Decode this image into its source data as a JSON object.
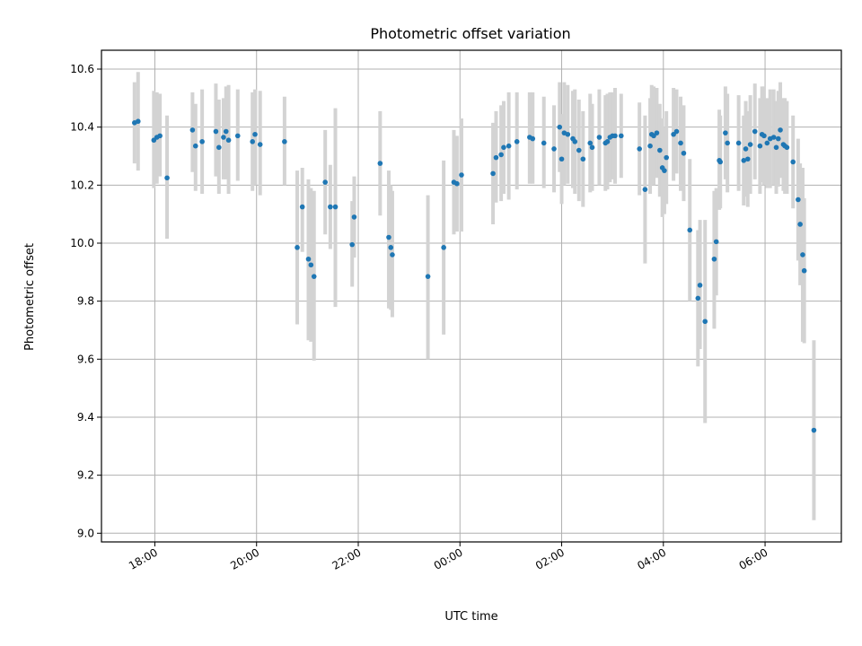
{
  "chart_data": {
    "type": "scatter",
    "title": "Photometric offset variation",
    "xlabel": "UTC time",
    "ylabel": "Photometric offset",
    "x_unit": "hours after 00:00 UTC (negative = previous evening)",
    "xlim": [
      -7.05,
      7.5
    ],
    "ylim": [
      8.97,
      10.665
    ],
    "x_ticks": [
      {
        "label": "18:00",
        "value": -6
      },
      {
        "label": "20:00",
        "value": -4
      },
      {
        "label": "22:00",
        "value": -2
      },
      {
        "label": "00:00",
        "value": 0
      },
      {
        "label": "02:00",
        "value": 2
      },
      {
        "label": "04:00",
        "value": 4
      },
      {
        "label": "06:00",
        "value": 6
      }
    ],
    "y_ticks": [
      {
        "label": "9.0",
        "value": 9.0
      },
      {
        "label": "9.2",
        "value": 9.2
      },
      {
        "label": "9.4",
        "value": 9.4
      },
      {
        "label": "9.6",
        "value": 9.6
      },
      {
        "label": "9.8",
        "value": 9.8
      },
      {
        "label": "10.0",
        "value": 10.0
      },
      {
        "label": "10.2",
        "value": 10.2
      },
      {
        "label": "10.4",
        "value": 10.4
      },
      {
        "label": "10.6",
        "value": 10.6
      }
    ],
    "grid": true,
    "colors": {
      "point": "#1f77b4",
      "errorbar": "#d3d3d3"
    },
    "points": [
      {
        "t": -6.4,
        "y": 10.415,
        "lo": 10.275,
        "hi": 10.555
      },
      {
        "t": -6.33,
        "y": 10.42,
        "lo": 10.25,
        "hi": 10.59
      },
      {
        "t": -6.02,
        "y": 10.355,
        "lo": 10.19,
        "hi": 10.525
      },
      {
        "t": -5.96,
        "y": 10.365,
        "lo": 10.205,
        "hi": 10.52
      },
      {
        "t": -5.9,
        "y": 10.37,
        "lo": 10.23,
        "hi": 10.515
      },
      {
        "t": -5.76,
        "y": 10.225,
        "lo": 10.015,
        "hi": 10.44
      },
      {
        "t": -5.26,
        "y": 10.39,
        "lo": 10.245,
        "hi": 10.52
      },
      {
        "t": -5.2,
        "y": 10.335,
        "lo": 10.18,
        "hi": 10.48
      },
      {
        "t": -5.07,
        "y": 10.35,
        "lo": 10.17,
        "hi": 10.53
      },
      {
        "t": -4.8,
        "y": 10.385,
        "lo": 10.23,
        "hi": 10.55
      },
      {
        "t": -4.74,
        "y": 10.33,
        "lo": 10.17,
        "hi": 10.495
      },
      {
        "t": -4.65,
        "y": 10.365,
        "lo": 10.22,
        "hi": 10.5
      },
      {
        "t": -4.6,
        "y": 10.385,
        "lo": 10.22,
        "hi": 10.54
      },
      {
        "t": -4.55,
        "y": 10.355,
        "lo": 10.17,
        "hi": 10.545
      },
      {
        "t": -4.37,
        "y": 10.37,
        "lo": 10.215,
        "hi": 10.53
      },
      {
        "t": -4.08,
        "y": 10.35,
        "lo": 10.18,
        "hi": 10.52
      },
      {
        "t": -4.03,
        "y": 10.375,
        "lo": 10.2,
        "hi": 10.53
      },
      {
        "t": -3.93,
        "y": 10.34,
        "lo": 10.165,
        "hi": 10.525
      },
      {
        "t": -3.45,
        "y": 10.35,
        "lo": 10.2,
        "hi": 10.505
      },
      {
        "t": -3.2,
        "y": 9.985,
        "lo": 9.72,
        "hi": 10.25
      },
      {
        "t": -3.1,
        "y": 10.125,
        "lo": 9.97,
        "hi": 10.26
      },
      {
        "t": -2.98,
        "y": 9.945,
        "lo": 9.665,
        "hi": 10.22
      },
      {
        "t": -2.93,
        "y": 9.925,
        "lo": 9.66,
        "hi": 10.19
      },
      {
        "t": -2.87,
        "y": 9.885,
        "lo": 9.595,
        "hi": 10.18
      },
      {
        "t": -2.65,
        "y": 10.21,
        "lo": 10.03,
        "hi": 10.39
      },
      {
        "t": -2.55,
        "y": 10.125,
        "lo": 9.98,
        "hi": 10.27
      },
      {
        "t": -2.45,
        "y": 10.125,
        "lo": 9.78,
        "hi": 10.465
      },
      {
        "t": -2.12,
        "y": 9.995,
        "lo": 9.85,
        "hi": 10.145
      },
      {
        "t": -2.08,
        "y": 10.09,
        "lo": 9.95,
        "hi": 10.23
      },
      {
        "t": -1.57,
        "y": 10.275,
        "lo": 10.095,
        "hi": 10.455
      },
      {
        "t": -1.4,
        "y": 10.02,
        "lo": 9.775,
        "hi": 10.25
      },
      {
        "t": -1.36,
        "y": 9.985,
        "lo": 9.77,
        "hi": 10.2
      },
      {
        "t": -1.33,
        "y": 9.96,
        "lo": 9.745,
        "hi": 10.18
      },
      {
        "t": -0.63,
        "y": 9.885,
        "lo": 9.6,
        "hi": 10.165
      },
      {
        "t": -0.32,
        "y": 9.985,
        "lo": 9.685,
        "hi": 10.285
      },
      {
        "t": -0.12,
        "y": 10.21,
        "lo": 10.03,
        "hi": 10.39
      },
      {
        "t": -0.06,
        "y": 10.205,
        "lo": 10.04,
        "hi": 10.37
      },
      {
        "t": 0.03,
        "y": 10.235,
        "lo": 10.04,
        "hi": 10.43
      },
      {
        "t": 0.65,
        "y": 10.24,
        "lo": 10.065,
        "hi": 10.415
      },
      {
        "t": 0.71,
        "y": 10.295,
        "lo": 10.14,
        "hi": 10.455
      },
      {
        "t": 0.81,
        "y": 10.305,
        "lo": 10.145,
        "hi": 10.475
      },
      {
        "t": 0.86,
        "y": 10.33,
        "lo": 10.17,
        "hi": 10.49
      },
      {
        "t": 0.96,
        "y": 10.335,
        "lo": 10.15,
        "hi": 10.52
      },
      {
        "t": 1.12,
        "y": 10.35,
        "lo": 10.185,
        "hi": 10.52
      },
      {
        "t": 1.37,
        "y": 10.365,
        "lo": 10.205,
        "hi": 10.52
      },
      {
        "t": 1.43,
        "y": 10.36,
        "lo": 10.205,
        "hi": 10.52
      },
      {
        "t": 1.65,
        "y": 10.345,
        "lo": 10.19,
        "hi": 10.505
      },
      {
        "t": 1.85,
        "y": 10.325,
        "lo": 10.175,
        "hi": 10.475
      },
      {
        "t": 1.96,
        "y": 10.4,
        "lo": 10.245,
        "hi": 10.555
      },
      {
        "t": 2.0,
        "y": 10.29,
        "lo": 10.135,
        "hi": 10.445
      },
      {
        "t": 2.05,
        "y": 10.38,
        "lo": 10.2,
        "hi": 10.555
      },
      {
        "t": 2.12,
        "y": 10.375,
        "lo": 10.205,
        "hi": 10.545
      },
      {
        "t": 2.22,
        "y": 10.36,
        "lo": 10.19,
        "hi": 10.525
      },
      {
        "t": 2.26,
        "y": 10.35,
        "lo": 10.17,
        "hi": 10.53
      },
      {
        "t": 2.34,
        "y": 10.32,
        "lo": 10.145,
        "hi": 10.495
      },
      {
        "t": 2.42,
        "y": 10.29,
        "lo": 10.125,
        "hi": 10.455
      },
      {
        "t": 2.56,
        "y": 10.345,
        "lo": 10.175,
        "hi": 10.515
      },
      {
        "t": 2.6,
        "y": 10.33,
        "lo": 10.18,
        "hi": 10.48
      },
      {
        "t": 2.74,
        "y": 10.365,
        "lo": 10.2,
        "hi": 10.53
      },
      {
        "t": 2.86,
        "y": 10.345,
        "lo": 10.18,
        "hi": 10.51
      },
      {
        "t": 2.9,
        "y": 10.35,
        "lo": 10.185,
        "hi": 10.515
      },
      {
        "t": 2.95,
        "y": 10.365,
        "lo": 10.21,
        "hi": 10.52
      },
      {
        "t": 3.0,
        "y": 10.37,
        "lo": 10.22,
        "hi": 10.52
      },
      {
        "t": 3.05,
        "y": 10.37,
        "lo": 10.205,
        "hi": 10.535
      },
      {
        "t": 3.17,
        "y": 10.37,
        "lo": 10.225,
        "hi": 10.515
      },
      {
        "t": 3.53,
        "y": 10.325,
        "lo": 10.165,
        "hi": 10.485
      },
      {
        "t": 3.64,
        "y": 10.185,
        "lo": 9.93,
        "hi": 10.44
      },
      {
        "t": 3.74,
        "y": 10.335,
        "lo": 10.17,
        "hi": 10.5
      },
      {
        "t": 3.77,
        "y": 10.375,
        "lo": 10.205,
        "hi": 10.545
      },
      {
        "t": 3.81,
        "y": 10.37,
        "lo": 10.2,
        "hi": 10.54
      },
      {
        "t": 3.87,
        "y": 10.38,
        "lo": 10.225,
        "hi": 10.535
      },
      {
        "t": 3.93,
        "y": 10.32,
        "lo": 10.16,
        "hi": 10.48
      },
      {
        "t": 3.98,
        "y": 10.26,
        "lo": 10.09,
        "hi": 10.43
      },
      {
        "t": 4.02,
        "y": 10.25,
        "lo": 10.1,
        "hi": 10.4
      },
      {
        "t": 4.06,
        "y": 10.295,
        "lo": 10.135,
        "hi": 10.455
      },
      {
        "t": 4.2,
        "y": 10.375,
        "lo": 10.215,
        "hi": 10.535
      },
      {
        "t": 4.26,
        "y": 10.385,
        "lo": 10.24,
        "hi": 10.53
      },
      {
        "t": 4.34,
        "y": 10.345,
        "lo": 10.18,
        "hi": 10.505
      },
      {
        "t": 4.4,
        "y": 10.31,
        "lo": 10.145,
        "hi": 10.475
      },
      {
        "t": 4.52,
        "y": 10.045,
        "lo": 9.8,
        "hi": 10.29
      },
      {
        "t": 4.68,
        "y": 9.81,
        "lo": 9.575,
        "hi": 10.045
      },
      {
        "t": 4.72,
        "y": 9.855,
        "lo": 9.635,
        "hi": 10.08
      },
      {
        "t": 4.82,
        "y": 9.73,
        "lo": 9.38,
        "hi": 10.08
      },
      {
        "t": 5.0,
        "y": 9.945,
        "lo": 9.705,
        "hi": 10.18
      },
      {
        "t": 5.04,
        "y": 10.005,
        "lo": 9.82,
        "hi": 10.19
      },
      {
        "t": 5.1,
        "y": 10.285,
        "lo": 10.115,
        "hi": 10.46
      },
      {
        "t": 5.12,
        "y": 10.28,
        "lo": 10.12,
        "hi": 10.44
      },
      {
        "t": 5.22,
        "y": 10.38,
        "lo": 10.22,
        "hi": 10.54
      },
      {
        "t": 5.26,
        "y": 10.345,
        "lo": 10.175,
        "hi": 10.515
      },
      {
        "t": 5.48,
        "y": 10.345,
        "lo": 10.18,
        "hi": 10.51
      },
      {
        "t": 5.58,
        "y": 10.285,
        "lo": 10.13,
        "hi": 10.44
      },
      {
        "t": 5.62,
        "y": 10.325,
        "lo": 10.16,
        "hi": 10.49
      },
      {
        "t": 5.66,
        "y": 10.29,
        "lo": 10.125,
        "hi": 10.455
      },
      {
        "t": 5.71,
        "y": 10.34,
        "lo": 10.17,
        "hi": 10.51
      },
      {
        "t": 5.8,
        "y": 10.385,
        "lo": 10.22,
        "hi": 10.55
      },
      {
        "t": 5.9,
        "y": 10.335,
        "lo": 10.17,
        "hi": 10.5
      },
      {
        "t": 5.94,
        "y": 10.375,
        "lo": 10.21,
        "hi": 10.54
      },
      {
        "t": 5.98,
        "y": 10.37,
        "lo": 10.2,
        "hi": 10.54
      },
      {
        "t": 6.04,
        "y": 10.345,
        "lo": 10.19,
        "hi": 10.5
      },
      {
        "t": 6.1,
        "y": 10.36,
        "lo": 10.19,
        "hi": 10.53
      },
      {
        "t": 6.17,
        "y": 10.365,
        "lo": 10.2,
        "hi": 10.53
      },
      {
        "t": 6.22,
        "y": 10.33,
        "lo": 10.17,
        "hi": 10.49
      },
      {
        "t": 6.26,
        "y": 10.36,
        "lo": 10.195,
        "hi": 10.525
      },
      {
        "t": 6.3,
        "y": 10.39,
        "lo": 10.225,
        "hi": 10.555
      },
      {
        "t": 6.36,
        "y": 10.34,
        "lo": 10.18,
        "hi": 10.5
      },
      {
        "t": 6.39,
        "y": 10.335,
        "lo": 10.17,
        "hi": 10.5
      },
      {
        "t": 6.43,
        "y": 10.33,
        "lo": 10.17,
        "hi": 10.49
      },
      {
        "t": 6.55,
        "y": 10.28,
        "lo": 10.12,
        "hi": 10.44
      },
      {
        "t": 6.65,
        "y": 10.15,
        "lo": 9.94,
        "hi": 10.36
      },
      {
        "t": 6.69,
        "y": 10.065,
        "lo": 9.855,
        "hi": 10.275
      },
      {
        "t": 6.74,
        "y": 9.96,
        "lo": 9.66,
        "hi": 10.26
      },
      {
        "t": 6.77,
        "y": 9.905,
        "lo": 9.655,
        "hi": 10.155
      },
      {
        "t": 6.96,
        "y": 9.355,
        "lo": 9.045,
        "hi": 9.665
      }
    ]
  }
}
